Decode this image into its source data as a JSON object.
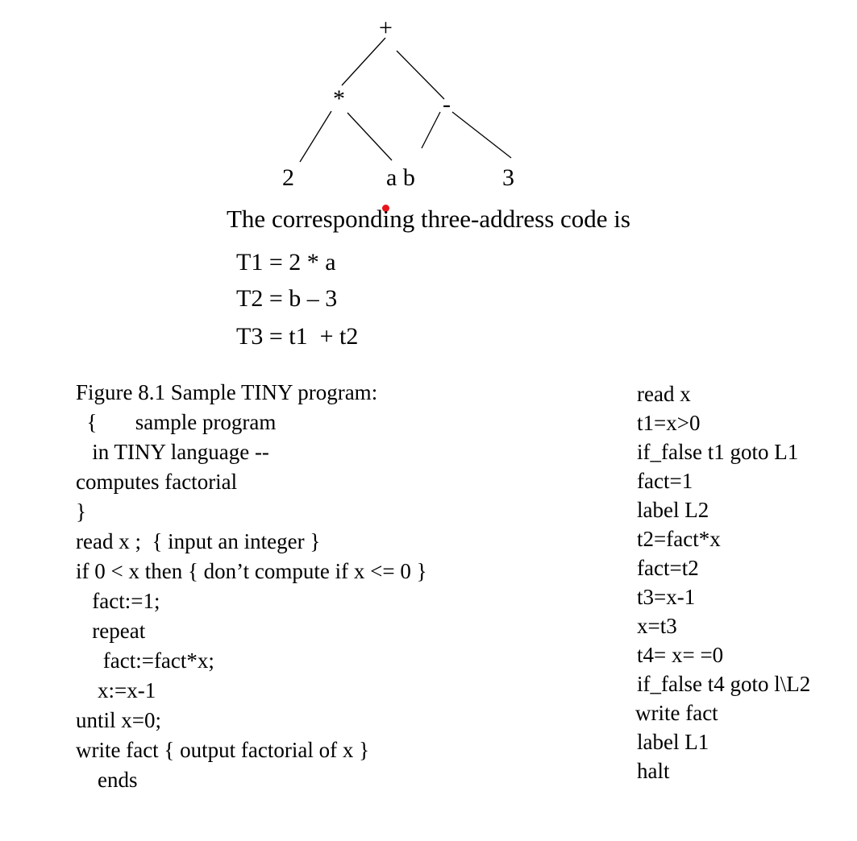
{
  "tree": {
    "root": "+",
    "mul": "*",
    "minus": "-",
    "leaf_2": "2",
    "leaf_ab": "a b",
    "leaf_3": "3"
  },
  "intro": "The corresponding three-address code is",
  "tac": [
    "T1 = 2 * a",
    "T2 = b – 3",
    "T3 = t1  + t2"
  ],
  "program": [
    "Figure 8.1 Sample TINY program:",
    "  {       sample program",
    "   in TINY language --",
    "computes factorial",
    "}",
    "read x ;  { input an integer }",
    "if 0 < x then { don’t compute if x <= 0 }",
    "   fact:=1;",
    "   repeat",
    "     fact:=fact*x;",
    "    x:=x-1",
    "until x=0;",
    "write fact { output factorial of x }",
    "    ends"
  ],
  "three_address": [
    "read x",
    "t1=x>0",
    "if_false t1 goto L1",
    "fact=1",
    "label L2",
    "t2=fact*x",
    "fact=t2",
    "t3=x-1",
    "x=t3",
    "t4= x= =0",
    "if_false t4 goto l\\L2",
    "write fact",
    "label L1",
    "halt"
  ],
  "colors": {
    "marker": "#e8141c",
    "ink": "#000000"
  }
}
